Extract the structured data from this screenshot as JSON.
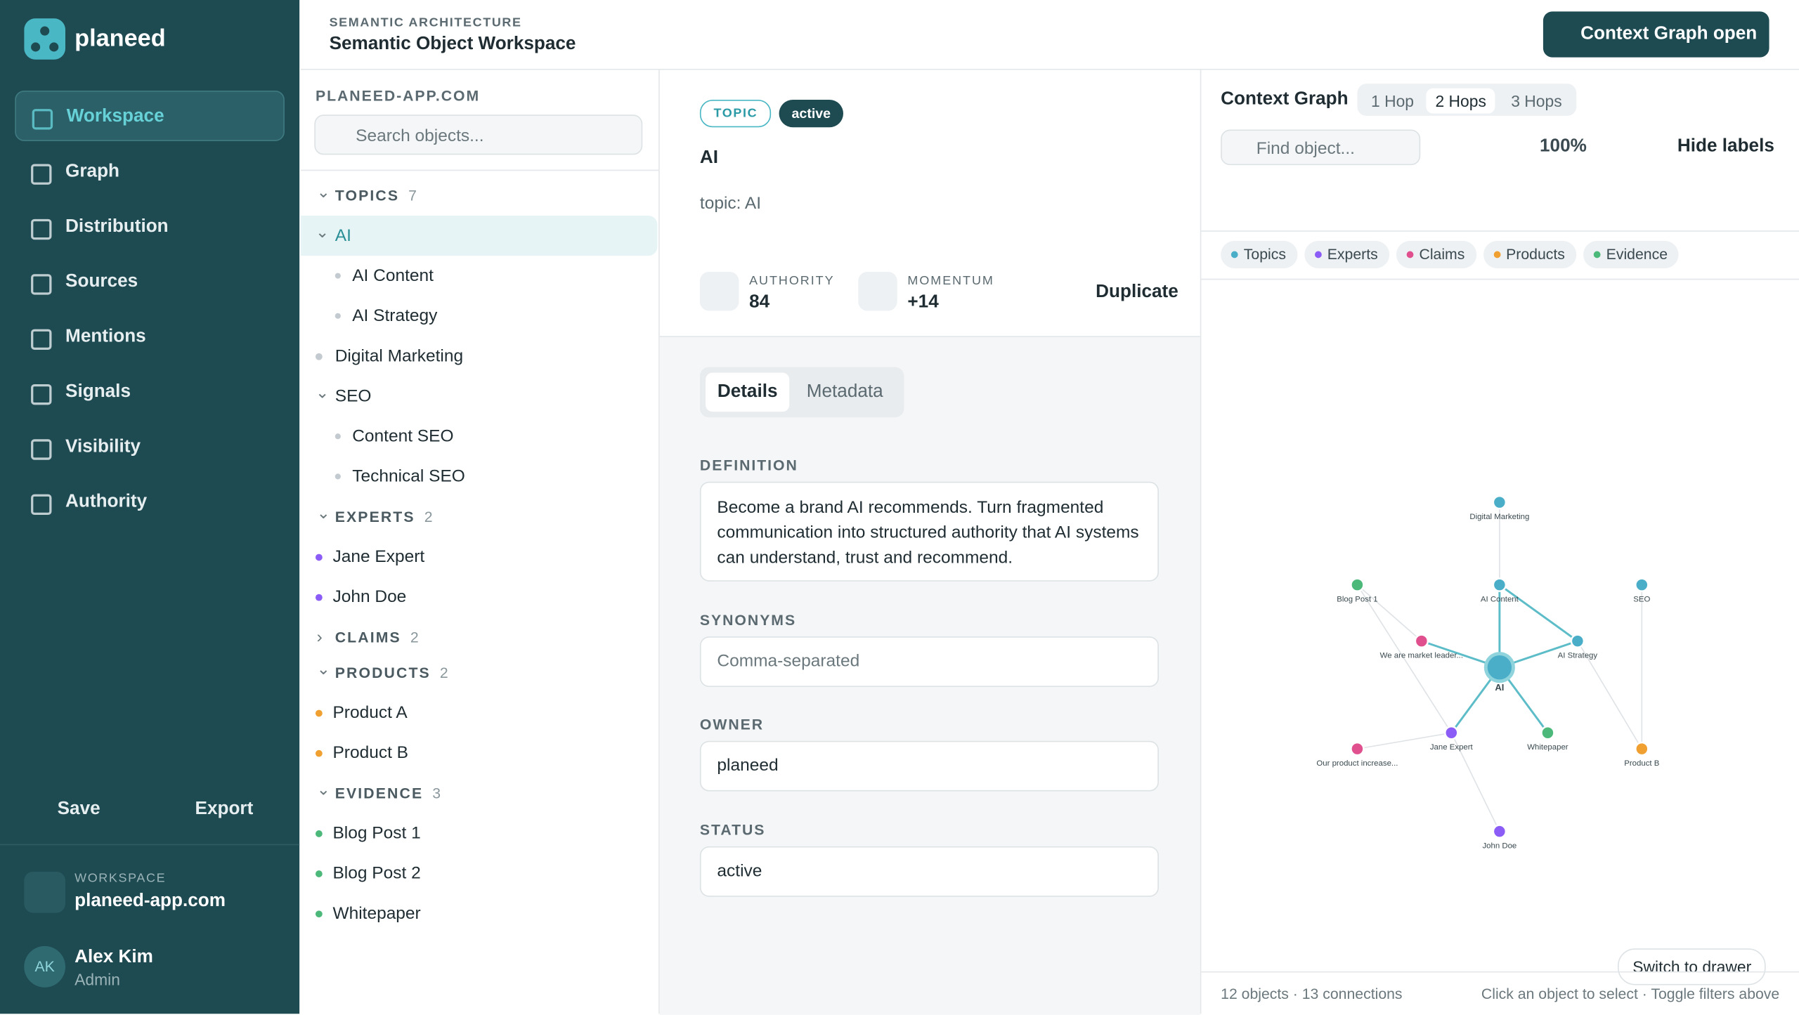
{
  "brand": "planeed",
  "nav": [
    "Workspace",
    "Graph",
    "Distribution",
    "Sources",
    "Mentions",
    "Signals",
    "Visibility",
    "Authority"
  ],
  "actions": [
    "Save",
    "Export"
  ],
  "workspace": {
    "label": "WORKSPACE",
    "name": "planeed-app.com"
  },
  "user": {
    "initials": "AK",
    "name": "Alex Kim",
    "role": "Admin"
  },
  "header": {
    "eyebrow": "SEMANTIC ARCHITECTURE",
    "title": "Semantic Object Workspace",
    "button": "Context Graph open"
  },
  "tree": {
    "domain": "PLANEED-APP.COM",
    "search": "Search objects...",
    "groups": [
      {
        "name": "TOPICS",
        "count": 7,
        "color": "#c4cbd0",
        "open": true,
        "items": [
          {
            "label": "AI",
            "open": true,
            "selected": true,
            "children": [
              "AI Content",
              "AI Strategy"
            ]
          },
          {
            "label": "Digital Marketing"
          },
          {
            "label": "SEO",
            "open": true,
            "children": [
              "Content SEO",
              "Technical SEO"
            ]
          }
        ]
      },
      {
        "name": "EXPERTS",
        "count": 2,
        "color": "#8b5cf6",
        "open": true,
        "items": [
          {
            "label": "Jane Expert"
          },
          {
            "label": "John Doe"
          }
        ]
      },
      {
        "name": "CLAIMS",
        "count": 2,
        "color": "#e0508f",
        "open": false,
        "items": []
      },
      {
        "name": "PRODUCTS",
        "count": 2,
        "color": "#f0a030",
        "open": true,
        "items": [
          {
            "label": "Product A"
          },
          {
            "label": "Product B"
          }
        ]
      },
      {
        "name": "EVIDENCE",
        "count": 3,
        "color": "#4cb87a",
        "open": true,
        "items": [
          {
            "label": "Blog Post 1"
          },
          {
            "label": "Blog Post 2"
          },
          {
            "label": "Whitepaper"
          }
        ]
      }
    ]
  },
  "detail": {
    "badges": [
      "TOPIC",
      "active"
    ],
    "title": "AI",
    "subtitle": "topic: AI",
    "stats": [
      {
        "label": "AUTHORITY",
        "value": 84
      },
      {
        "label": "MOMENTUM",
        "value": "+14"
      }
    ],
    "duplicate": "Duplicate",
    "tabs": [
      "Details",
      "Metadata"
    ],
    "fields": [
      {
        "label": "DEFINITION",
        "value": "Become a brand AI recommends. Turn fragmented communication into structured authority that AI systems can understand, trust and recommend."
      },
      {
        "label": "SYNONYMS",
        "placeholder": "Comma-separated"
      },
      {
        "label": "OWNER",
        "value": "planeed"
      },
      {
        "label": "STATUS",
        "value": "active"
      }
    ]
  },
  "graph": {
    "title": "Context Graph",
    "hops": [
      "1 Hop",
      "2 Hops",
      "3 Hops"
    ],
    "find": "Find object...",
    "zoom": "100%",
    "hide": "Hide labels",
    "legend": [
      {
        "name": "Topics",
        "color": "#4aaec9"
      },
      {
        "name": "Experts",
        "color": "#8b5cf6"
      },
      {
        "name": "Claims",
        "color": "#e0508f"
      },
      {
        "name": "Products",
        "color": "#f0a030"
      },
      {
        "name": "Evidence",
        "color": "#4cb87a"
      }
    ],
    "nodes": [
      {
        "label": "AI",
        "color": "#4aaec9"
      },
      {
        "label": "Digital Marketing",
        "color": "#4aaec9"
      },
      {
        "label": "Blog Post 1",
        "color": "#4cb87a"
      },
      {
        "label": "AI Content",
        "color": "#4aaec9"
      },
      {
        "label": "SEO",
        "color": "#4aaec9"
      },
      {
        "label": "We are market leader...",
        "color": "#e0508f"
      },
      {
        "label": "AI Strategy",
        "color": "#4aaec9"
      },
      {
        "label": "Jane Expert",
        "color": "#8b5cf6"
      },
      {
        "label": "Whitepaper",
        "color": "#4cb87a"
      },
      {
        "label": "Our product increase...",
        "color": "#e0508f"
      },
      {
        "label": "Product B",
        "color": "#f0a030"
      },
      {
        "label": "John Doe",
        "color": "#8b5cf6"
      }
    ],
    "stats": "12 objects · 13 connections",
    "hint": "Click an object to select · Toggle filters above",
    "drawer": "Switch to drawer"
  }
}
